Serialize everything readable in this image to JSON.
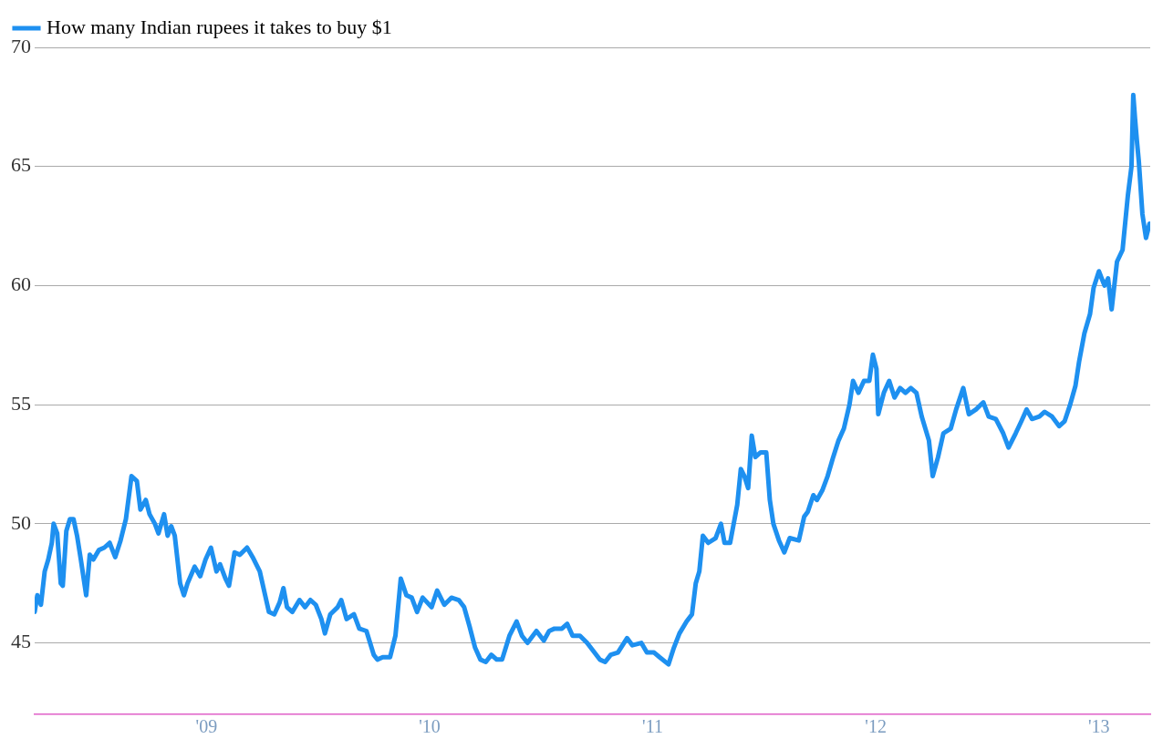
{
  "chart_data": {
    "type": "line",
    "legend": "top left",
    "grid": "y",
    "marker": "none",
    "line_style": "solid",
    "xlim": [
      2008.23,
      2013.23
    ],
    "xticks": [
      {
        "value": 2009,
        "label": "'09"
      },
      {
        "value": 2010,
        "label": "'10"
      },
      {
        "value": 2011,
        "label": "'11"
      },
      {
        "value": 2012,
        "label": "'12"
      },
      {
        "value": 2013,
        "label": "'13"
      }
    ],
    "ylim": [
      42,
      70
    ],
    "yticks": [
      45,
      50,
      55,
      60,
      65,
      70
    ],
    "x": [
      2008.23,
      2008.242,
      2008.258,
      2008.275,
      2008.291,
      2008.307,
      2008.315,
      2008.331,
      2008.347,
      2008.356,
      2008.372,
      2008.388,
      2008.404,
      2008.42,
      2008.437,
      2008.461,
      2008.477,
      2008.493,
      2008.518,
      2008.542,
      2008.566,
      2008.591,
      2008.615,
      2008.639,
      2008.664,
      2008.688,
      2008.704,
      2008.728,
      2008.745,
      2008.769,
      2008.785,
      2008.81,
      2008.826,
      2008.842,
      2008.858,
      2008.882,
      2008.899,
      2008.915,
      2008.947,
      2008.972,
      2008.996,
      2009.02,
      2009.045,
      2009.061,
      2009.085,
      2009.101,
      2009.126,
      2009.15,
      2009.182,
      2009.207,
      2009.239,
      2009.263,
      2009.28,
      2009.304,
      2009.328,
      2009.345,
      2009.361,
      2009.385,
      2009.417,
      2009.442,
      2009.466,
      2009.49,
      2009.515,
      2009.531,
      2009.555,
      2009.588,
      2009.604,
      2009.628,
      2009.661,
      2009.685,
      2009.717,
      2009.75,
      2009.766,
      2009.79,
      2009.823,
      2009.847,
      2009.871,
      2009.896,
      2009.92,
      2009.944,
      2009.969,
      2010.009,
      2010.034,
      2010.066,
      2010.098,
      2010.131,
      2010.155,
      2010.179,
      2010.204,
      2010.228,
      2010.252,
      2010.277,
      2010.301,
      2010.325,
      2010.358,
      2010.39,
      2010.414,
      2010.439,
      2010.479,
      2010.512,
      2010.536,
      2010.56,
      2010.593,
      2010.617,
      2010.641,
      2010.674,
      2010.706,
      2010.731,
      2010.763,
      2010.787,
      2010.812,
      2010.844,
      2010.885,
      2010.909,
      2010.949,
      2010.974,
      2011.006,
      2011.031,
      2011.071,
      2011.095,
      2011.12,
      2011.152,
      2011.176,
      2011.193,
      2011.209,
      2011.225,
      2011.249,
      2011.282,
      2011.306,
      2011.322,
      2011.347,
      2011.363,
      2011.379,
      2011.395,
      2011.411,
      2011.428,
      2011.444,
      2011.46,
      2011.484,
      2011.509,
      2011.525,
      2011.541,
      2011.566,
      2011.59,
      2011.614,
      2011.655,
      2011.679,
      2011.695,
      2011.72,
      2011.736,
      2011.76,
      2011.784,
      2011.809,
      2011.833,
      2011.857,
      2011.882,
      2011.898,
      2011.922,
      2011.947,
      2011.971,
      2011.987,
      2012.003,
      2012.011,
      2012.036,
      2012.06,
      2012.084,
      2012.109,
      2012.133,
      2012.157,
      2012.182,
      2012.206,
      2012.238,
      2012.255,
      2012.279,
      2012.303,
      2012.336,
      2012.36,
      2012.392,
      2012.417,
      2012.449,
      2012.482,
      2012.506,
      2012.538,
      2012.571,
      2012.595,
      2012.627,
      2012.652,
      2012.676,
      2012.7,
      2012.733,
      2012.757,
      2012.79,
      2012.822,
      2012.846,
      2012.871,
      2012.895,
      2012.911,
      2012.935,
      2012.96,
      2012.976,
      2013.0,
      2013.025,
      2013.041,
      2013.057,
      2013.081,
      2013.106,
      2013.13,
      2013.146,
      2013.154,
      2013.162,
      2013.171,
      2013.179,
      2013.195,
      2013.211,
      2013.227
    ],
    "series": [
      {
        "name": "How many Indian rupees it takes to buy $1",
        "color": "#1e90f0",
        "values": [
          46.3,
          47.0,
          46.6,
          48.0,
          48.5,
          49.2,
          50.0,
          49.6,
          47.5,
          47.4,
          49.7,
          50.2,
          50.2,
          49.5,
          48.5,
          47.0,
          48.7,
          48.5,
          48.9,
          49.0,
          49.2,
          48.6,
          49.3,
          50.2,
          52.0,
          51.8,
          50.6,
          51.0,
          50.4,
          50.0,
          49.6,
          50.4,
          49.5,
          49.9,
          49.5,
          47.5,
          47.0,
          47.5,
          48.2,
          47.8,
          48.5,
          49.0,
          48.0,
          48.3,
          47.7,
          47.4,
          48.8,
          48.7,
          49.0,
          48.6,
          48.0,
          47.0,
          46.3,
          46.2,
          46.7,
          47.3,
          46.5,
          46.3,
          46.8,
          46.5,
          46.8,
          46.6,
          46.0,
          45.4,
          46.2,
          46.5,
          46.8,
          46.0,
          46.2,
          45.6,
          45.5,
          44.5,
          44.3,
          44.4,
          44.4,
          45.3,
          47.7,
          47.0,
          46.9,
          46.3,
          46.9,
          46.5,
          47.2,
          46.6,
          46.9,
          46.8,
          46.5,
          45.7,
          44.8,
          44.3,
          44.2,
          44.5,
          44.3,
          44.3,
          45.3,
          45.9,
          45.3,
          45.0,
          45.5,
          45.1,
          45.5,
          45.6,
          45.6,
          45.8,
          45.3,
          45.3,
          45.0,
          44.7,
          44.3,
          44.2,
          44.5,
          44.6,
          45.2,
          44.9,
          45.0,
          44.6,
          44.6,
          44.4,
          44.1,
          44.8,
          45.4,
          45.9,
          46.2,
          47.5,
          48.0,
          49.5,
          49.2,
          49.4,
          50.0,
          49.2,
          49.2,
          50.0,
          50.8,
          52.3,
          52.0,
          51.5,
          53.7,
          52.8,
          53.0,
          53.0,
          51.0,
          50.0,
          49.3,
          48.8,
          49.4,
          49.3,
          50.3,
          50.5,
          51.2,
          51.0,
          51.4,
          52.0,
          52.8,
          53.5,
          54.0,
          55.0,
          56.0,
          55.5,
          56.0,
          56.0,
          57.1,
          56.5,
          54.6,
          55.5,
          56.0,
          55.3,
          55.7,
          55.5,
          55.7,
          55.5,
          54.5,
          53.5,
          52.0,
          52.8,
          53.8,
          54.0,
          54.8,
          55.7,
          54.6,
          54.8,
          55.1,
          54.5,
          54.4,
          53.8,
          53.2,
          53.8,
          54.3,
          54.8,
          54.4,
          54.5,
          54.7,
          54.5,
          54.1,
          54.3,
          55.0,
          55.8,
          56.8,
          58.0,
          58.8,
          59.9,
          60.6,
          60.0,
          60.3,
          59.0,
          61.0,
          61.5,
          63.8,
          65.0,
          68.0,
          67.0,
          66.0,
          65.2,
          63.0,
          62.0,
          62.6
        ]
      }
    ]
  }
}
